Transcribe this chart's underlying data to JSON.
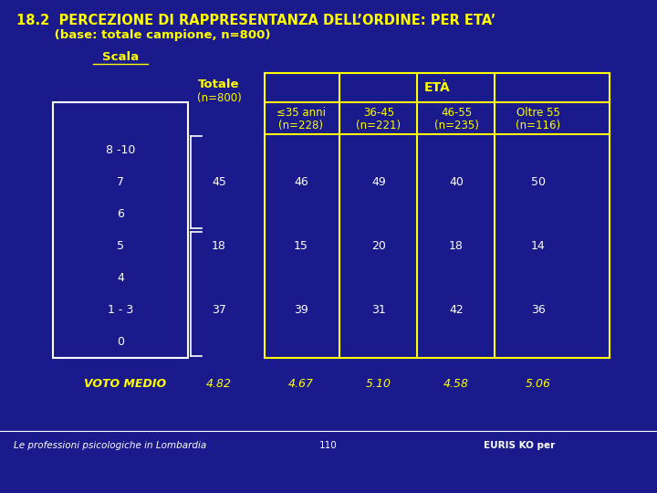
{
  "title_line1": "18.2  PERCEZIONE DI RAPPRESENTANZA DELL’ORDINE: PER ETA’",
  "title_line2": "         (base: totale campione, n=800)",
  "bg_color": "#1a1a8c",
  "yellow": "#ffff00",
  "white": "#ffffff",
  "scala_label": "Scala",
  "totale_label": "Totale",
  "totale_n": "(n=800)",
  "eta_label": "ETÀ",
  "col_headers_line1": [
    "≤35 anni",
    "36-45",
    "46-55",
    "Oltre 55"
  ],
  "col_headers_line2": [
    "(n=228)",
    "(n=221)",
    "(n=235)",
    "(n=116)"
  ],
  "row_labels": [
    "8 -10",
    "7",
    "6",
    "5",
    "4",
    "1 - 3",
    "0"
  ],
  "totale_row_vals": {
    "1": "45",
    "3": "18",
    "5": "37"
  },
  "data_row_vals": {
    "1": [
      "46",
      "49",
      "40",
      "50"
    ],
    "3": [
      "15",
      "20",
      "18",
      "14"
    ],
    "5": [
      "39",
      "31",
      "42",
      "36"
    ]
  },
  "voto_medio_label": "VOTO MEDIO",
  "voto_medio_totale": "4.82",
  "voto_medio_cols": [
    "4.67",
    "5.10",
    "4.58",
    "5.06"
  ],
  "footer_left": "Le professioni psicologiche in Lombardia",
  "footer_center": "110",
  "footer_right": "EURIS KO per"
}
